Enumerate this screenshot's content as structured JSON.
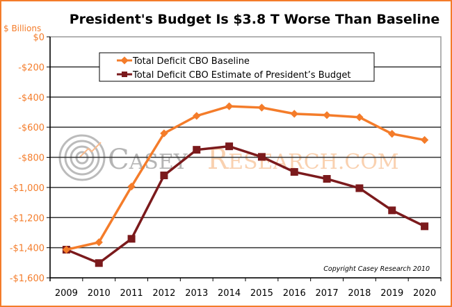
{
  "chart_data": {
    "type": "line",
    "title": "President's Budget Is $3.8 T Worse Than Baseline",
    "ylabel": "$ Billions",
    "xlabel": "",
    "categories": [
      "2009",
      "2010",
      "2011",
      "2012",
      "2013",
      "2014",
      "2015",
      "2016",
      "2017",
      "2018",
      "2019",
      "2020"
    ],
    "ylim": [
      -1600,
      0
    ],
    "yticks": [
      0,
      -200,
      -400,
      -600,
      -800,
      -1000,
      -1200,
      -1400,
      -1600
    ],
    "ytick_labels": [
      "$0",
      "-$200",
      "-$400",
      "-$600",
      "-$800",
      "-$1,000",
      "-$1,200",
      "-$1,400",
      "-$1,600"
    ],
    "grid": true,
    "legend_position": "top-center",
    "series": [
      {
        "name": "Total Deficit CBO Baseline",
        "color": "#f47c2a",
        "marker": "diamond",
        "values": [
          -1413,
          -1364,
          -994,
          -641,
          -525,
          -461,
          -470,
          -511,
          -520,
          -534,
          -644,
          -685
        ]
      },
      {
        "name": "Total Deficit CBO Estimate of President’s Budget",
        "color": "#7b1a1c",
        "marker": "square",
        "values": [
          -1413,
          -1502,
          -1341,
          -920,
          -750,
          -727,
          -797,
          -897,
          -943,
          -1005,
          -1152,
          -1258
        ]
      }
    ],
    "annotation": "Copyright Casey Research 2010",
    "watermark": "CASEY RESEARCH.COM",
    "colors": {
      "border": "#f47c2a",
      "tick_labels": "#f47c2a"
    }
  }
}
